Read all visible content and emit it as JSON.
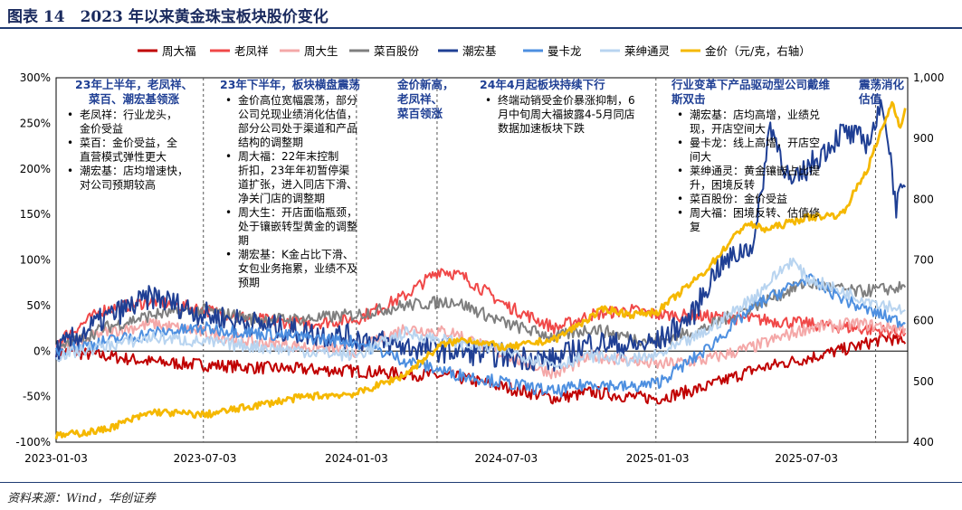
{
  "title": "图表 14　2023 年以来黄金珠宝板块股价变化",
  "source": "资料来源：Wind，华创证券",
  "chart_data": {
    "type": "line",
    "title": "图表 14　2023 年以来黄金珠宝板块股价变化",
    "xlabel": "",
    "ylabel": "",
    "x_ticks": [
      "2023-01-03",
      "2023-07-03",
      "2024-01-03",
      "2024-07-03",
      "2025-01-03",
      "2025-07-03"
    ],
    "y_left": {
      "ticks": [
        "-100%",
        "-50%",
        "0%",
        "50%",
        "100%",
        "150%",
        "200%",
        "250%",
        "300%"
      ],
      "ylim": [
        -100,
        300
      ]
    },
    "y_right": {
      "ticks": [
        "400",
        "500",
        "600",
        "700",
        "800",
        "900",
        "1,000"
      ],
      "ylim": [
        400,
        1000
      ]
    },
    "legend_position": "top",
    "grid": false,
    "series": [
      {
        "name": "周大福",
        "axis": "left",
        "color": "#c00000",
        "points": [
          [
            "2023-01-03",
            0
          ],
          [
            "2023-03-01",
            -5
          ],
          [
            "2023-05-01",
            -12
          ],
          [
            "2023-07-03",
            -15
          ],
          [
            "2023-09-01",
            -18
          ],
          [
            "2023-11-01",
            -20
          ],
          [
            "2024-01-03",
            -22
          ],
          [
            "2024-03-01",
            -25
          ],
          [
            "2024-05-01",
            -28
          ],
          [
            "2024-07-03",
            -40
          ],
          [
            "2024-09-01",
            -52
          ],
          [
            "2024-10-15",
            -45
          ],
          [
            "2024-12-01",
            -50
          ],
          [
            "2025-01-03",
            -52
          ],
          [
            "2025-03-01",
            -40
          ],
          [
            "2025-05-01",
            -20
          ],
          [
            "2025-07-03",
            -8
          ],
          [
            "2025-09-01",
            5
          ],
          [
            "2025-10-10",
            15
          ],
          [
            "2025-10-31",
            8
          ]
        ]
      },
      {
        "name": "老凤祥",
        "axis": "left",
        "color": "#f04848",
        "points": [
          [
            "2023-01-03",
            10
          ],
          [
            "2023-03-01",
            45
          ],
          [
            "2023-05-01",
            55
          ],
          [
            "2023-07-03",
            45
          ],
          [
            "2023-09-01",
            35
          ],
          [
            "2023-11-01",
            30
          ],
          [
            "2024-01-03",
            35
          ],
          [
            "2024-03-01",
            60
          ],
          [
            "2024-04-15",
            90
          ],
          [
            "2024-05-15",
            80
          ],
          [
            "2024-07-03",
            50
          ],
          [
            "2024-09-01",
            25
          ],
          [
            "2024-10-15",
            40
          ],
          [
            "2024-12-01",
            45
          ],
          [
            "2025-01-03",
            40
          ],
          [
            "2025-03-01",
            38
          ],
          [
            "2025-05-01",
            35
          ],
          [
            "2025-07-03",
            30
          ],
          [
            "2025-09-01",
            25
          ],
          [
            "2025-10-31",
            20
          ]
        ]
      },
      {
        "name": "周大生",
        "axis": "left",
        "color": "#f4a8a8",
        "points": [
          [
            "2023-01-03",
            0
          ],
          [
            "2023-03-01",
            20
          ],
          [
            "2023-05-01",
            30
          ],
          [
            "2023-07-03",
            20
          ],
          [
            "2023-09-01",
            10
          ],
          [
            "2023-11-01",
            5
          ],
          [
            "2024-01-03",
            0
          ],
          [
            "2024-03-01",
            25
          ],
          [
            "2024-05-01",
            20
          ],
          [
            "2024-07-03",
            -5
          ],
          [
            "2024-09-01",
            -25
          ],
          [
            "2024-10-15",
            -5
          ],
          [
            "2024-12-01",
            -10
          ],
          [
            "2025-01-03",
            -15
          ],
          [
            "2025-03-01",
            -10
          ],
          [
            "2025-05-01",
            5
          ],
          [
            "2025-07-03",
            25
          ],
          [
            "2025-09-01",
            30
          ],
          [
            "2025-10-31",
            25
          ]
        ]
      },
      {
        "name": "菜百股份",
        "axis": "left",
        "color": "#7f7f7f",
        "points": [
          [
            "2023-01-03",
            0
          ],
          [
            "2023-03-01",
            25
          ],
          [
            "2023-05-01",
            40
          ],
          [
            "2023-07-03",
            45
          ],
          [
            "2023-09-01",
            35
          ],
          [
            "2023-11-01",
            35
          ],
          [
            "2024-01-03",
            40
          ],
          [
            "2024-03-01",
            50
          ],
          [
            "2024-05-01",
            55
          ],
          [
            "2024-07-03",
            30
          ],
          [
            "2024-09-01",
            15
          ],
          [
            "2024-10-15",
            25
          ],
          [
            "2024-12-01",
            15
          ],
          [
            "2025-01-03",
            10
          ],
          [
            "2025-03-01",
            25
          ],
          [
            "2025-05-01",
            50
          ],
          [
            "2025-07-03",
            75
          ],
          [
            "2025-09-01",
            65
          ],
          [
            "2025-10-31",
            70
          ]
        ]
      },
      {
        "name": "潮宏基",
        "axis": "left",
        "color": "#1f3f94",
        "points": [
          [
            "2023-01-03",
            0
          ],
          [
            "2023-03-01",
            35
          ],
          [
            "2023-05-01",
            60
          ],
          [
            "2023-07-03",
            40
          ],
          [
            "2023-09-01",
            30
          ],
          [
            "2023-11-01",
            20
          ],
          [
            "2024-01-03",
            15
          ],
          [
            "2024-03-01",
            5
          ],
          [
            "2024-05-01",
            0
          ],
          [
            "2024-07-03",
            -5
          ],
          [
            "2024-09-01",
            -10
          ],
          [
            "2024-10-15",
            10
          ],
          [
            "2024-12-01",
            5
          ],
          [
            "2025-01-03",
            10
          ],
          [
            "2025-02-15",
            40
          ],
          [
            "2025-03-15",
            90
          ],
          [
            "2025-05-01",
            120
          ],
          [
            "2025-05-20",
            250
          ],
          [
            "2025-06-15",
            180
          ],
          [
            "2025-07-03",
            200
          ],
          [
            "2025-08-15",
            240
          ],
          [
            "2025-09-15",
            230
          ],
          [
            "2025-10-05",
            270
          ],
          [
            "2025-10-20",
            160
          ],
          [
            "2025-10-31",
            180
          ]
        ]
      },
      {
        "name": "曼卡龙",
        "axis": "left",
        "color": "#4d8fe0",
        "points": [
          [
            "2023-01-03",
            0
          ],
          [
            "2023-03-01",
            10
          ],
          [
            "2023-05-01",
            20
          ],
          [
            "2023-07-03",
            25
          ],
          [
            "2023-09-01",
            20
          ],
          [
            "2023-11-01",
            15
          ],
          [
            "2024-01-03",
            10
          ],
          [
            "2024-03-01",
            -10
          ],
          [
            "2024-05-01",
            -25
          ],
          [
            "2024-07-03",
            -35
          ],
          [
            "2024-09-01",
            -45
          ],
          [
            "2024-10-15",
            -35
          ],
          [
            "2024-12-01",
            -40
          ],
          [
            "2025-01-03",
            -35
          ],
          [
            "2025-03-01",
            0
          ],
          [
            "2025-05-01",
            50
          ],
          [
            "2025-07-03",
            80
          ],
          [
            "2025-09-01",
            50
          ],
          [
            "2025-10-31",
            30
          ]
        ]
      },
      {
        "name": "莱绅通灵",
        "axis": "left",
        "color": "#b8d4f0",
        "points": [
          [
            "2023-01-03",
            -5
          ],
          [
            "2023-03-01",
            5
          ],
          [
            "2023-05-01",
            15
          ],
          [
            "2023-07-03",
            10
          ],
          [
            "2023-09-01",
            5
          ],
          [
            "2023-11-01",
            0
          ],
          [
            "2024-01-03",
            -5
          ],
          [
            "2024-03-01",
            20
          ],
          [
            "2024-05-01",
            10
          ],
          [
            "2024-07-03",
            0
          ],
          [
            "2024-09-01",
            -15
          ],
          [
            "2024-10-15",
            -5
          ],
          [
            "2024-12-01",
            -10
          ],
          [
            "2025-01-03",
            -5
          ],
          [
            "2025-03-01",
            20
          ],
          [
            "2025-05-01",
            60
          ],
          [
            "2025-06-15",
            100
          ],
          [
            "2025-07-03",
            80
          ],
          [
            "2025-09-01",
            60
          ],
          [
            "2025-10-31",
            45
          ]
        ]
      },
      {
        "name": "金价（元/克，右轴）",
        "axis": "right",
        "color": "#f5b800",
        "points": [
          [
            "2023-01-03",
            410
          ],
          [
            "2023-03-01",
            420
          ],
          [
            "2023-05-01",
            450
          ],
          [
            "2023-07-03",
            445
          ],
          [
            "2023-09-01",
            460
          ],
          [
            "2023-11-01",
            475
          ],
          [
            "2024-01-03",
            480
          ],
          [
            "2024-03-01",
            510
          ],
          [
            "2024-04-15",
            560
          ],
          [
            "2024-05-15",
            570
          ],
          [
            "2024-07-03",
            555
          ],
          [
            "2024-09-01",
            570
          ],
          [
            "2024-10-31",
            620
          ],
          [
            "2024-12-01",
            610
          ],
          [
            "2025-01-03",
            615
          ],
          [
            "2025-03-01",
            680
          ],
          [
            "2025-04-20",
            760
          ],
          [
            "2025-05-15",
            750
          ],
          [
            "2025-07-03",
            770
          ],
          [
            "2025-08-15",
            775
          ],
          [
            "2025-09-15",
            850
          ],
          [
            "2025-10-15,",
            960
          ],
          [
            "2025-10-25",
            920
          ],
          [
            "2025-10-31",
            950
          ]
        ]
      }
    ],
    "annotations": [
      {
        "heading": [
          "23年上半年，老凤祥、",
          "菜百、潮宏基领涨"
        ],
        "bullets": [
          [
            "老凤祥：行业龙头，",
            "金价受益"
          ],
          [
            "菜百：金价受益，全",
            "直营模式弹性更大"
          ],
          [
            "潮宏基：店均增速快，",
            "对公司预期较高"
          ]
        ]
      },
      {
        "heading": [
          "23年下半年，板块横盘震荡"
        ],
        "bullets": [
          [
            "金价高位宽幅震荡，部分",
            "公司兑现业绩消化估值，",
            "部分公司处于渠道和产品",
            "结构的调整期"
          ],
          [
            "周大福：22年末控制",
            "折扣，23年年初暂停渠",
            "道扩张，进入同店下滑、",
            "净关门店的调整期"
          ],
          [
            "周大生：开店面临瓶颈，",
            "处于镶嵌转型黄金的调整",
            "期"
          ],
          [
            "潮宏基：K金占比下滑、",
            "女包业务拖累，业绩不及",
            "预期"
          ]
        ]
      },
      {
        "heading": [
          "金价新高，",
          "老凤祥、",
          "菜百领涨"
        ],
        "bullets": []
      },
      {
        "heading": [
          "24年4月起板块持续下行"
        ],
        "bullets": [
          [
            "终端动销受金价暴涨抑制，6",
            "月中旬周大福披露4-5月同店",
            "数据加速板块下跌"
          ]
        ]
      },
      {
        "heading": [
          "行业变革下产品驱动型公司戴维",
          "斯双击"
        ],
        "bullets": [
          [
            "潮宏基：店均高增，业绩兑",
            "现，开店空间大"
          ],
          [
            "曼卡龙：线上高增，开店空",
            "间大"
          ],
          [
            "莱绅通灵：黄金镶嵌占比提",
            "升，困境反转"
          ],
          [
            "菜百股份：金价受益"
          ],
          [
            "周大福：困境反转、估值修",
            "复"
          ]
        ]
      },
      {
        "heading": [
          "震荡消化",
          "估值"
        ],
        "bullets": []
      }
    ]
  }
}
